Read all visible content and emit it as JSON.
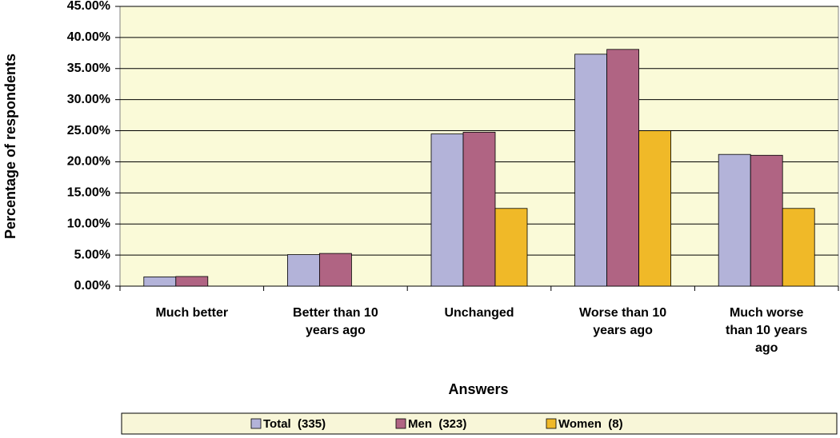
{
  "chart_data": {
    "type": "bar",
    "y_label": "Percentage of respondents",
    "x_label": "Answers",
    "categories": [
      "Much better",
      "Better than 10 years ago",
      "Unchanged",
      "Worse than 10 years ago",
      "Much worse than 10 years ago"
    ],
    "series": [
      {
        "name": "Total  (335)",
        "color": "#b3b3d9",
        "values": [
          1.49,
          5.07,
          24.48,
          37.31,
          21.19
        ]
      },
      {
        "name": "Men  (323)",
        "color": "#b06483",
        "values": [
          1.55,
          5.26,
          24.77,
          38.08,
          21.05
        ]
      },
      {
        "name": "Women  (8)",
        "color": "#f0b928",
        "values": [
          0,
          0,
          12.5,
          25,
          12.5
        ]
      }
    ],
    "ylim": [
      0,
      45
    ],
    "yticks": [
      {
        "value": 0,
        "label": "0.00%"
      },
      {
        "value": 5,
        "label": "5.00%"
      },
      {
        "value": 10,
        "label": "10.00%"
      },
      {
        "value": 15,
        "label": "15.00%"
      },
      {
        "value": 20,
        "label": "20.00%"
      },
      {
        "value": 25,
        "label": "25.00%"
      },
      {
        "value": 30,
        "label": "30.00%"
      },
      {
        "value": 35,
        "label": "35.00%"
      },
      {
        "value": 40,
        "label": "40.00%"
      },
      {
        "value": 45,
        "label": "45.00%"
      }
    ],
    "grid": true,
    "legend": "bottom"
  }
}
